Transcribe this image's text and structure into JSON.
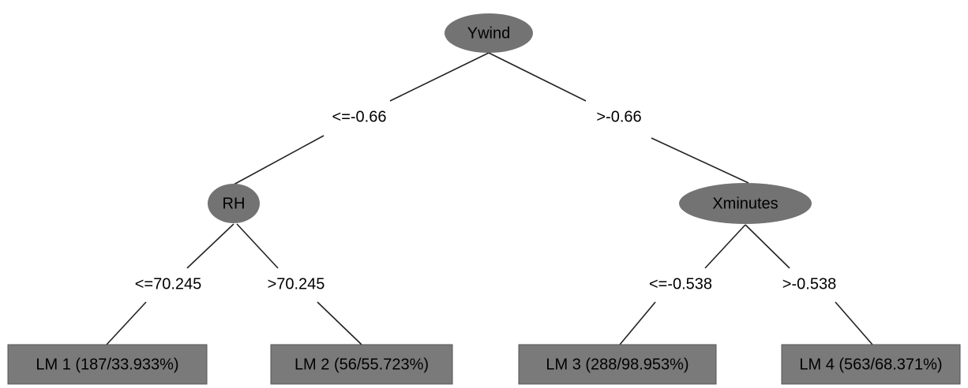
{
  "nodes": [
    {
      "label": "Ywind"
    },
    {
      "label": "RH"
    },
    {
      "label": "Xminutes"
    }
  ],
  "edges": [
    {
      "label": "<=-0.66"
    },
    {
      "label": ">-0.66"
    },
    {
      "label": "<=70.245"
    },
    {
      "label": ">70.245"
    },
    {
      "label": "<=-0.538"
    },
    {
      "label": ">-0.538"
    }
  ],
  "leaves": [
    {
      "label": "LM 1 (187/33.933%)"
    },
    {
      "label": "LM 2 (56/55.723%)"
    },
    {
      "label": "LM 3 (288/98.953%)"
    },
    {
      "label": "LM 4 (563/68.371%)"
    }
  ]
}
